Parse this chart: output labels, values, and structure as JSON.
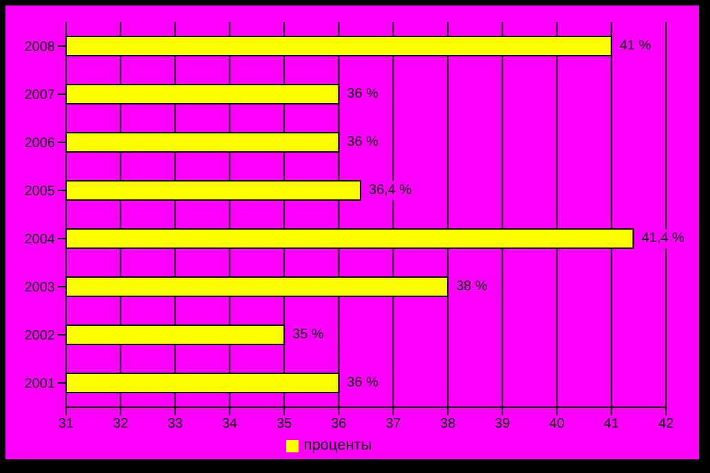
{
  "chart_data": {
    "type": "bar",
    "orientation": "horizontal",
    "categories": [
      "2008",
      "2007",
      "2006",
      "2005",
      "2004",
      "2003",
      "2002",
      "2001"
    ],
    "series": [
      {
        "name": "проценты",
        "color": "#ffff00",
        "values": [
          41,
          36,
          36,
          36.4,
          41.4,
          38,
          35,
          36
        ],
        "value_labels": [
          "41 %",
          "36 %",
          "36 %",
          "36,4 %",
          "41,4 %",
          "38 %",
          "35 %",
          "36 %"
        ]
      }
    ],
    "xlim": [
      31,
      42
    ],
    "xticks": [
      31,
      32,
      33,
      34,
      35,
      36,
      37,
      38,
      39,
      40,
      41,
      42
    ],
    "grid": "x",
    "legend": "bottom"
  }
}
